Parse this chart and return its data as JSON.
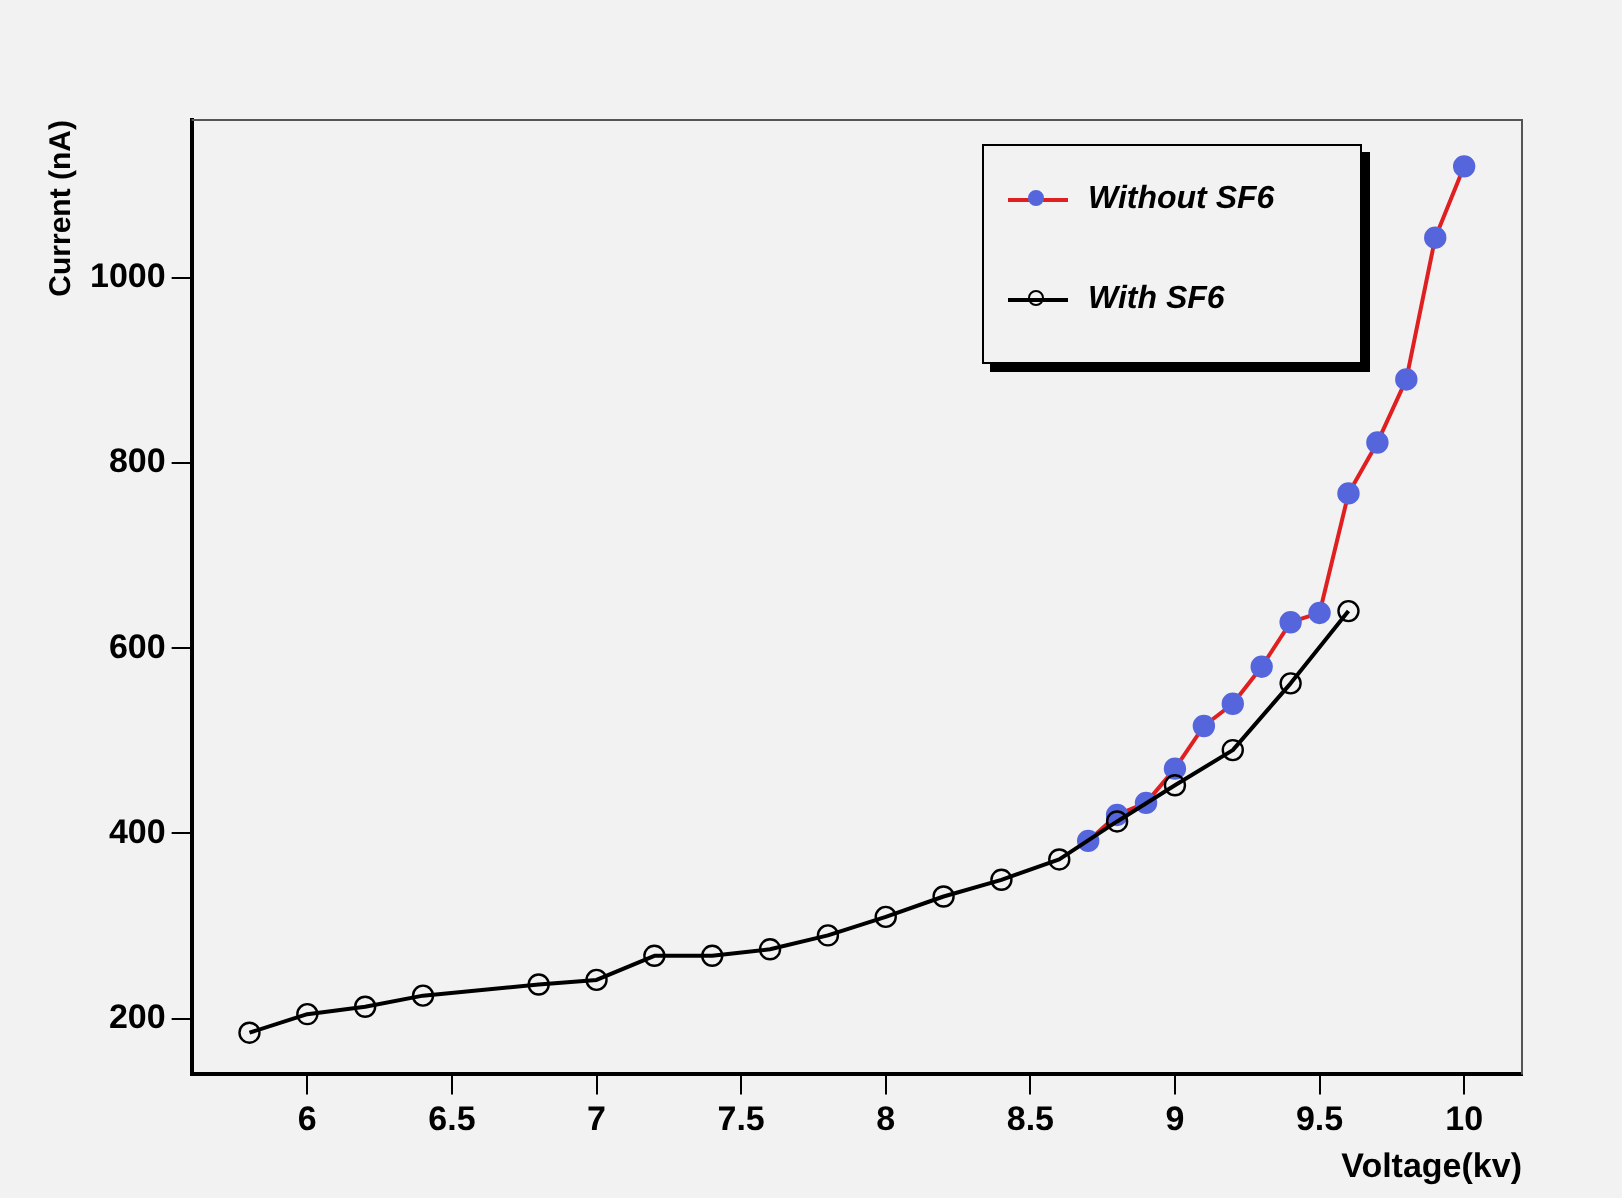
{
  "chart_data": {
    "type": "line",
    "xlabel": "Voltage(kv)",
    "ylabel": "Current (nA)",
    "xlim": [
      5.6,
      10.2
    ],
    "xticks": [
      6,
      6.5,
      7,
      7.5,
      8,
      8.5,
      9,
      9.5,
      10
    ],
    "ylim": [
      140,
      1170
    ],
    "yticks": [
      200,
      400,
      600,
      800,
      1000
    ],
    "grid": false,
    "legend": "top right",
    "marker": "circle",
    "line_style": "solid",
    "series": [
      {
        "name": "Without SF6",
        "color": "#e02020",
        "colors": [
          "#5566dd",
          "#5566dd",
          "#5566dd",
          "#5566dd",
          "#5566dd",
          "#5566dd",
          "#5566dd",
          "#5566dd",
          "#5566dd",
          "#5566dd",
          "#5566dd",
          "#5566dd",
          "#5566dd",
          "#5566dd"
        ],
        "x": [
          8.7,
          8.8,
          8.9,
          9.0,
          9.1,
          9.2,
          9.3,
          9.4,
          9.5,
          9.6,
          9.7,
          9.8,
          9.9,
          10.0
        ],
        "values": [
          392,
          420,
          433,
          470,
          516,
          540,
          580,
          628,
          638,
          767,
          822,
          890,
          1043,
          1120
        ]
      },
      {
        "name": "With SF6",
        "color": "#000000",
        "x": [
          5.8,
          6.0,
          6.2,
          6.4,
          6.8,
          7.0,
          7.2,
          7.4,
          7.6,
          7.8,
          8.0,
          8.2,
          8.4,
          8.6,
          8.8,
          9.0,
          9.2,
          9.4,
          9.6
        ],
        "values": [
          185,
          205,
          213,
          225,
          237,
          242,
          268,
          268,
          275,
          290,
          310,
          332,
          350,
          372,
          413,
          452,
          490,
          562,
          640
        ]
      }
    ]
  }
}
